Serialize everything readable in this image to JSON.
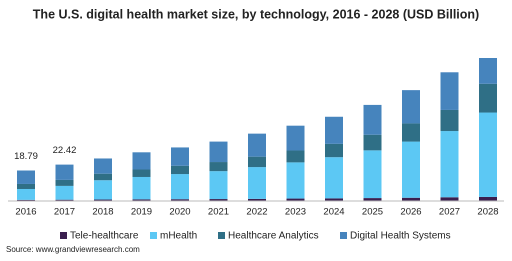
{
  "chart_data": {
    "type": "stacked-bar",
    "title": "The U.S. digital health market size, by technology, 2016 - 2028 (USD Billion)",
    "categories": [
      "2016",
      "2017",
      "2018",
      "2019",
      "2020",
      "2021",
      "2022",
      "2023",
      "2024",
      "2025",
      "2026",
      "2027",
      "2028"
    ],
    "series": [
      {
        "name": "Tele-healthcare",
        "color": "#3a1f4f",
        "values": [
          0.7,
          0.8,
          0.9,
          1.0,
          1.1,
          1.2,
          1.3,
          1.5,
          1.6,
          1.8,
          2.0,
          2.3,
          2.5
        ]
      },
      {
        "name": "mHealth",
        "color": "#5cc8f4",
        "values": [
          6.7,
          8.5,
          11.9,
          13.8,
          15.5,
          17.2,
          19.6,
          22.3,
          25.4,
          29.4,
          34.6,
          40.8,
          52.0
        ]
      },
      {
        "name": "Healthcare Analytics",
        "color": "#2f6f86",
        "values": [
          3.1,
          3.7,
          4.0,
          4.6,
          5.1,
          5.6,
          6.4,
          7.3,
          8.2,
          9.6,
          11.2,
          13.0,
          17.7
        ]
      },
      {
        "name": "Digital Health Systems",
        "color": "#4684bd",
        "values": [
          8.29,
          9.42,
          9.4,
          10.6,
          11.3,
          12.6,
          14.2,
          15.3,
          16.7,
          18.4,
          20.5,
          23.2,
          15.9
        ]
      }
    ],
    "totals": [
      18.79,
      22.42
    ],
    "source": "Source: www.grandviewresearch.com"
  }
}
